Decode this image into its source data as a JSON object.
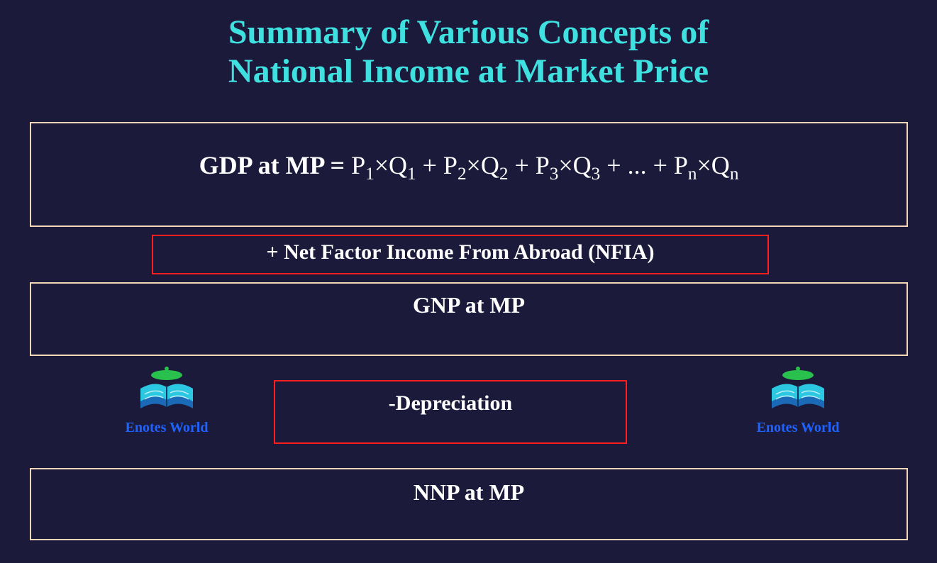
{
  "title": {
    "line1": "Summary of Various Concepts of",
    "line2": "National Income at Market Price",
    "color": "#3ee0e0",
    "fontsize": 48
  },
  "background_color": "#1c1a3a",
  "text_color": "#ffffff",
  "border_color_main": "#f5d7b8",
  "border_color_accent": "#ff1e1e",
  "gdp": {
    "label": "GDP at MP = ",
    "terms": [
      {
        "p": "P",
        "psub": "1",
        "q": "Q",
        "qsub": "1"
      },
      {
        "p": "P",
        "psub": "2",
        "q": "Q",
        "qsub": "2"
      },
      {
        "p": "P",
        "psub": "3",
        "q": "Q",
        "qsub": "3"
      }
    ],
    "ellipsis": "...",
    "lastterm": {
      "p": "P",
      "psub": "n",
      "q": "Q",
      "qsub": "n"
    },
    "plus": " + ",
    "times": "×"
  },
  "nfia": "+ Net Factor Income From Abroad (NFIA)",
  "gnp": "GNP at MP",
  "dep": "-Depreciation",
  "nnp": "NNP at MP",
  "logo": {
    "text": "Enotes World",
    "cap_color": "#29c04d",
    "book_color_top": "#2cc7e0",
    "book_color_bottom": "#1a6ab8",
    "text_color": "#1e63ff"
  }
}
